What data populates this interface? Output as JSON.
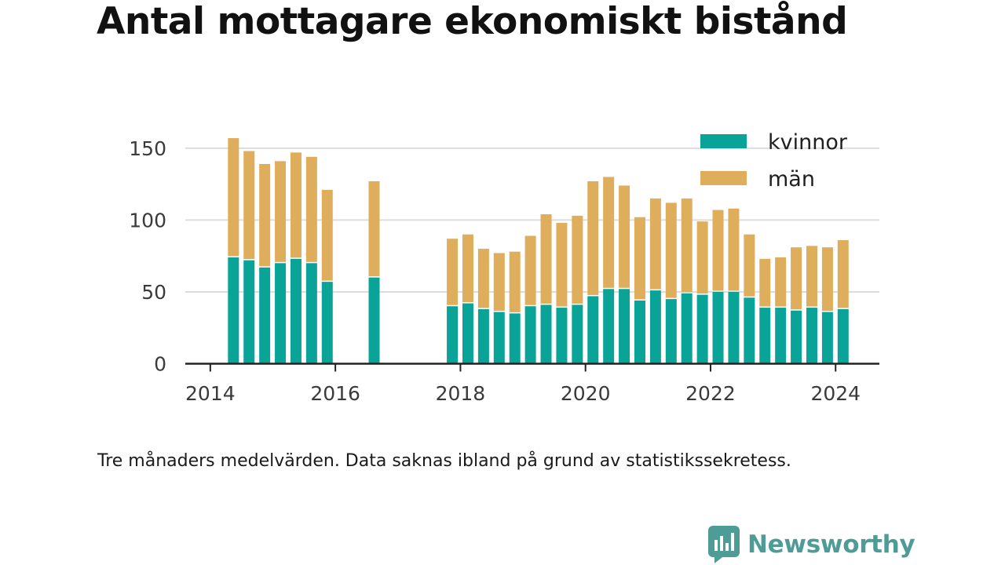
{
  "title": "Antal mottagare ekonomiskt bistånd",
  "note": "Tre månaders medelvärden. Data saknas ibland på grund av statistikssekretess.",
  "brand": {
    "name": "Newsworthy",
    "icon": "newsworthy-logo-icon"
  },
  "colors": {
    "kvinnor": "#0aa398",
    "man": "#deae5c",
    "axis": "#222222",
    "grid": "#dddddd",
    "brand": "#4f9c96"
  },
  "chart_data": {
    "type": "bar",
    "stacked": true,
    "x_unit": "year",
    "xlim": [
      2013.6,
      2024.7
    ],
    "ylim": [
      0,
      165
    ],
    "yticks": [
      0,
      50,
      100,
      150
    ],
    "xticks": [
      2014,
      2016,
      2018,
      2020,
      2022,
      2024
    ],
    "grid": true,
    "legend_position": "top-right",
    "x": [
      2014.37,
      2014.62,
      2014.87,
      2015.12,
      2015.37,
      2015.62,
      2015.87,
      2016.62,
      2017.87,
      2018.12,
      2018.37,
      2018.62,
      2018.87,
      2019.12,
      2019.37,
      2019.62,
      2019.87,
      2020.12,
      2020.37,
      2020.62,
      2020.87,
      2021.12,
      2021.37,
      2021.62,
      2021.87,
      2022.12,
      2022.37,
      2022.62,
      2022.87,
      2023.12,
      2023.37,
      2023.62,
      2023.87,
      2024.12
    ],
    "series": [
      {
        "name": "kvinnor",
        "values": [
          74,
          72,
          67,
          70,
          73,
          70,
          57,
          60,
          40,
          42,
          38,
          36,
          35,
          40,
          41,
          39,
          41,
          47,
          52,
          52,
          44,
          51,
          45,
          49,
          48,
          50,
          50,
          46,
          39,
          39,
          37,
          39,
          36,
          38
        ]
      },
      {
        "name": "män",
        "values": [
          83,
          76,
          72,
          71,
          74,
          74,
          64,
          67,
          47,
          48,
          42,
          41,
          43,
          49,
          63,
          59,
          62,
          80,
          78,
          72,
          58,
          64,
          67,
          66,
          51,
          57,
          58,
          44,
          34,
          35,
          44,
          43,
          45,
          48
        ]
      }
    ]
  }
}
